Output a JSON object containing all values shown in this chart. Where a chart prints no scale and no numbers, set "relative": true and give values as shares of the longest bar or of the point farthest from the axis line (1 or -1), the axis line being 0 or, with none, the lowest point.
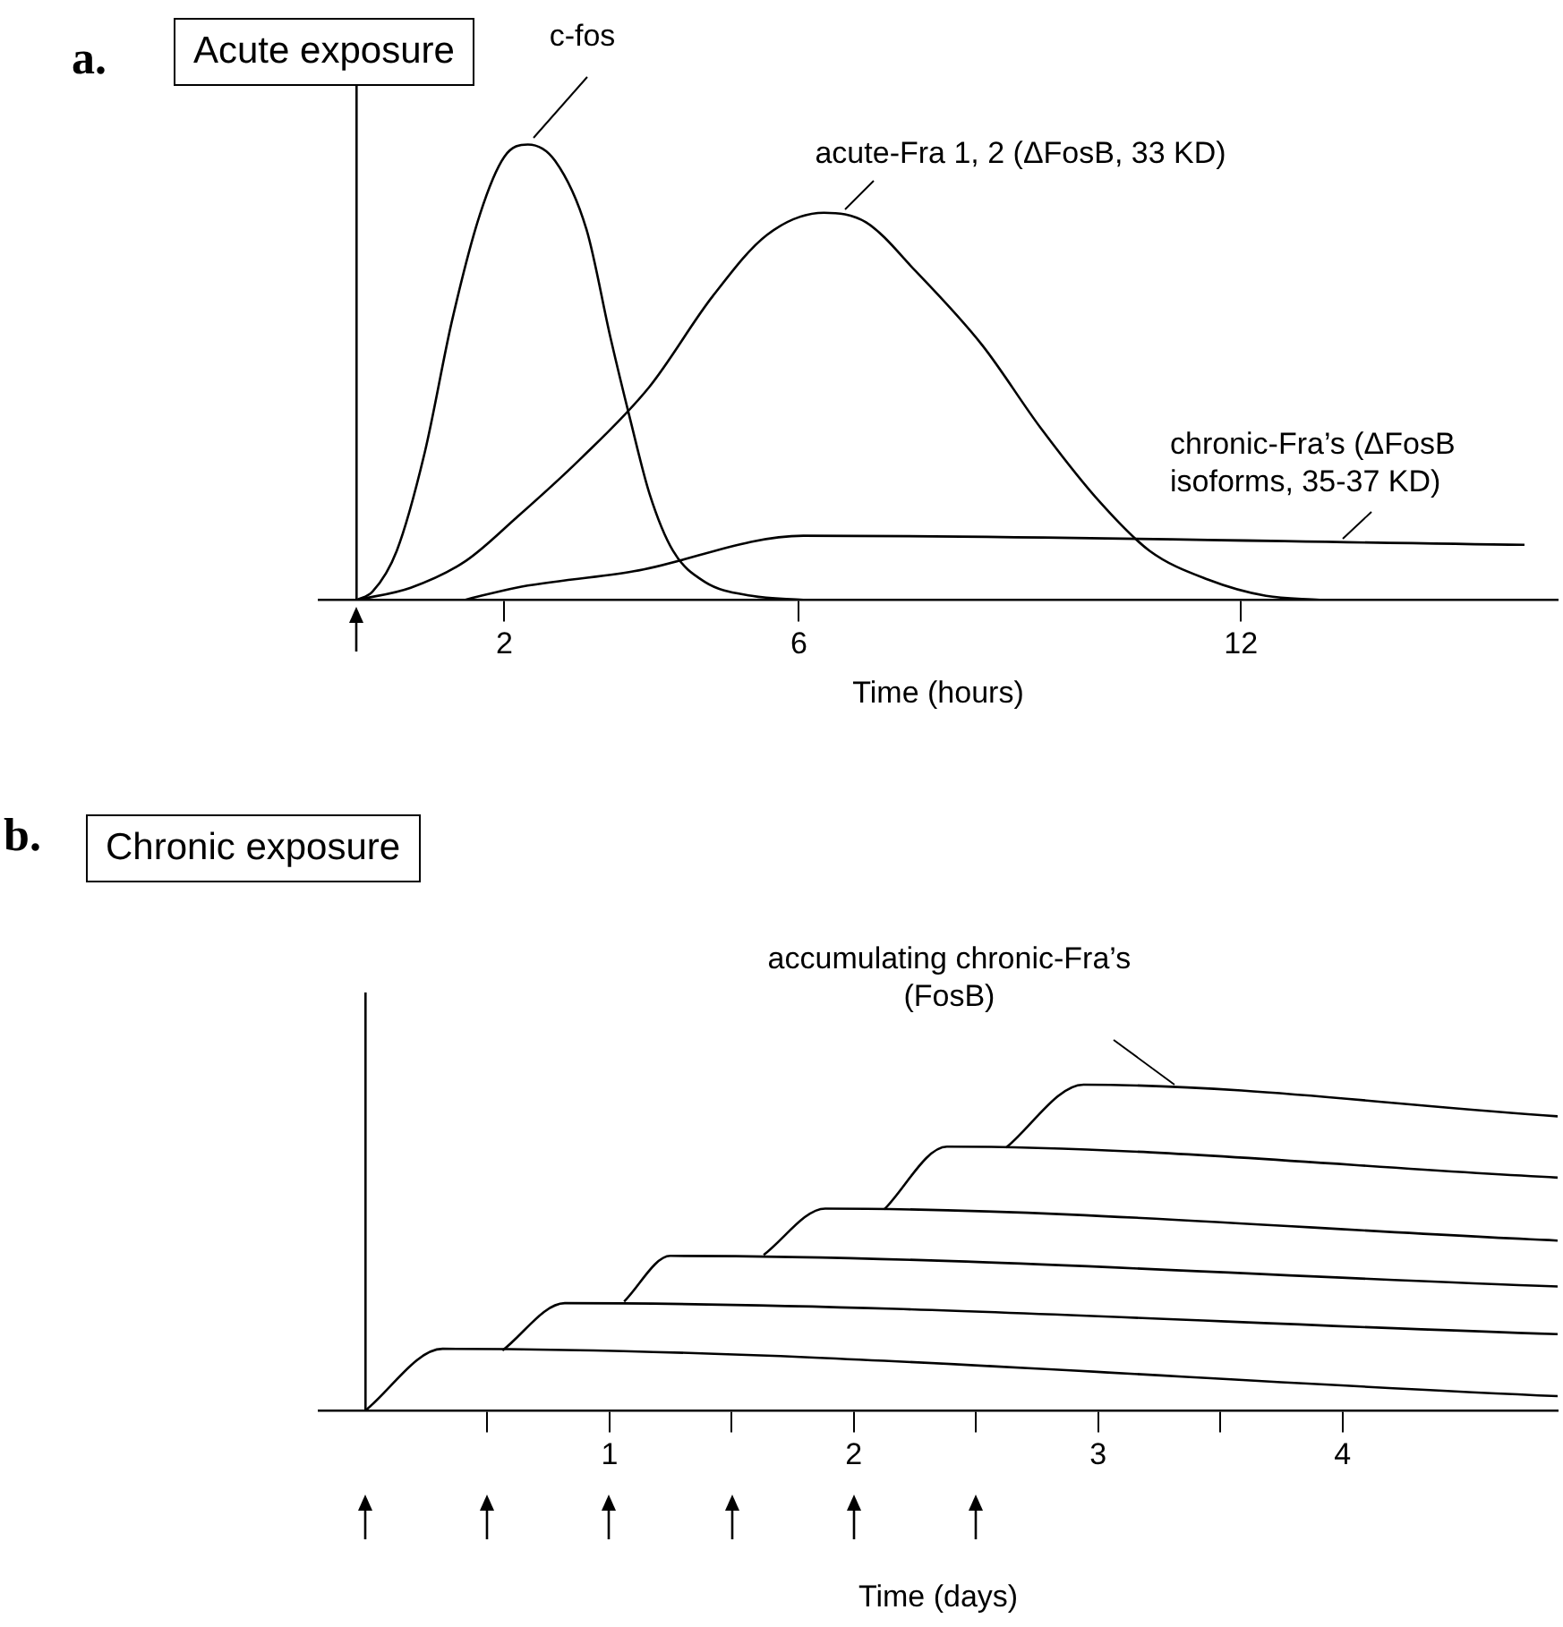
{
  "chart_data": [
    {
      "type": "line",
      "title": "Acute exposure",
      "xlabel": "Time (hours)",
      "annotations": [
        "a."
      ],
      "relative": true,
      "xlim": [
        -0.52,
        16.3
      ],
      "xticks": [
        2,
        6,
        12
      ],
      "marker": "none",
      "line_style": "solid",
      "series": [
        {
          "name": "c-fos",
          "color": "#000000",
          "x": [
            0,
            0.21,
            0.54,
            0.92,
            1.29,
            1.67,
            2.0,
            2.32,
            2.69,
            3.12,
            3.44,
            3.71,
            3.97,
            4.29,
            4.72,
            5.36,
            6.06
          ],
          "values": [
            0,
            0.018,
            0.108,
            0.324,
            0.613,
            0.847,
            0.973,
            1,
            0.964,
            0.811,
            0.577,
            0.396,
            0.234,
            0.108,
            0.04,
            0.009,
            0
          ]
        },
        {
          "name": "acute-Fra 1, 2 (ΔFosB, 33 KD)",
          "color": "#000000",
          "x": [
            0,
            0.73,
            1.48,
            2.16,
            3.01,
            3.97,
            4.83,
            5.57,
            6.34,
            6.91,
            7.59,
            8.49,
            9.28,
            10.08,
            10.76,
            11.55,
            12.34,
            13.07
          ],
          "values": [
            0,
            0.027,
            0.086,
            0.18,
            0.306,
            0.468,
            0.667,
            0.802,
            0.85,
            0.829,
            0.721,
            0.559,
            0.378,
            0.216,
            0.108,
            0.045,
            0.009,
            0
          ]
        },
        {
          "name": "chronic-Fra’s (ΔFosB isoforms, 35-37 KD)",
          "color": "#000000",
          "x": [
            1.46,
            2.16,
            3.76,
            6.06,
            15.85
          ],
          "values": [
            0,
            0.027,
            0.063,
            0.141,
            0.121
          ]
        }
      ]
    },
    {
      "type": "line",
      "title": "Chronic exposure",
      "xlabel": "Time (days)",
      "annotations": [
        "b."
      ],
      "relative": true,
      "xlim": [
        -0.19,
        4.88
      ],
      "xticks": [
        {
          "value": 0.5,
          "label": null
        },
        1,
        {
          "value": 1.5,
          "label": null
        },
        2,
        {
          "value": 2.5,
          "label": null
        },
        3,
        {
          "value": 3.5,
          "label": null
        },
        4
      ],
      "marker": "none",
      "line_style": "solid",
      "series": [
        {
          "color": "#000000",
          "x": [
            0,
            0.317,
            4.88
          ],
          "values": [
            0,
            0.19,
            0.045
          ]
        },
        {
          "color": "#000000",
          "x": [
            0.562,
            0.817,
            4.88
          ],
          "values": [
            0.185,
            0.33,
            0.235
          ]
        },
        {
          "color": "#000000",
          "x": [
            1.06,
            1.249,
            4.88
          ],
          "values": [
            0.335,
            0.475,
            0.381
          ]
        },
        {
          "color": "#000000",
          "x": [
            1.631,
            1.883,
            4.88
          ],
          "values": [
            0.478,
            0.62,
            0.522
          ]
        },
        {
          "color": "#000000",
          "x": [
            2.125,
            2.381,
            4.88
          ],
          "values": [
            0.618,
            0.81,
            0.715
          ]
        },
        {
          "name": "accumulating chronic-Fra’s (FosB)",
          "color": "#000000",
          "x": [
            2.623,
            2.94,
            4.88
          ],
          "values": [
            0.807,
            1,
            0.903
          ]
        }
      ]
    }
  ]
}
